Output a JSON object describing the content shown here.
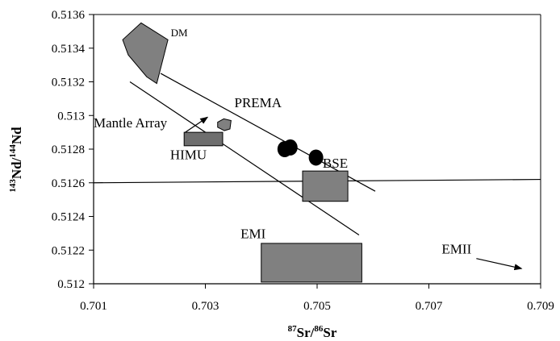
{
  "chart_data": {
    "type": "scatter",
    "title": "",
    "xlabel": {
      "sup1": "87",
      "main1": "Sr/",
      "sup2": "86",
      "main2": "Sr"
    },
    "ylabel": {
      "sup1": "143",
      "main1": "Nd/",
      "sup2": "144",
      "main2": "Nd"
    },
    "xlim": [
      0.701,
      0.709
    ],
    "ylim": [
      0.512,
      0.5136
    ],
    "xticks": [
      {
        "value": 0.701,
        "label": "0.701"
      },
      {
        "value": 0.703,
        "label": "0.703"
      },
      {
        "value": 0.705,
        "label": "0.705"
      },
      {
        "value": 0.707,
        "label": "0.707"
      },
      {
        "value": 0.709,
        "label": "0.709"
      }
    ],
    "yticks": [
      {
        "value": 0.512,
        "label": "0.512"
      },
      {
        "value": 0.5122,
        "label": "0.5122"
      },
      {
        "value": 0.5124,
        "label": "0.5124"
      },
      {
        "value": 0.5126,
        "label": "0.5126"
      },
      {
        "value": 0.5128,
        "label": "0.5128"
      },
      {
        "value": 0.513,
        "label": "0.513"
      },
      {
        "value": 0.5132,
        "label": "0.5132"
      },
      {
        "value": 0.5134,
        "label": "0.5134"
      },
      {
        "value": 0.5136,
        "label": "0.5136"
      }
    ],
    "grid": false,
    "fields": [
      {
        "name": "DM",
        "shape": "hexagon",
        "color": "#808080",
        "polygon": [
          [
            0.70152,
            0.51345
          ],
          [
            0.70185,
            0.51355
          ],
          [
            0.70233,
            0.51345
          ],
          [
            0.70213,
            0.51319
          ],
          [
            0.70195,
            0.51323
          ],
          [
            0.70162,
            0.51336
          ]
        ]
      },
      {
        "name": "PREMA",
        "shape": "small-hexagon",
        "color": "#808080",
        "polygon": [
          [
            0.70322,
            0.51296
          ],
          [
            0.70333,
            0.51298
          ],
          [
            0.70346,
            0.51297
          ],
          [
            0.70344,
            0.51292
          ],
          [
            0.70334,
            0.51291
          ],
          [
            0.70322,
            0.51293
          ]
        ]
      },
      {
        "name": "HIMU",
        "shape": "rectangle",
        "color": "#6e6e6e",
        "xrange": [
          0.70262,
          0.70331
        ],
        "yrange": [
          0.51282,
          0.5129
        ]
      },
      {
        "name": "BSE",
        "shape": "rectangle",
        "color": "#808080",
        "xrange": [
          0.70474,
          0.70555
        ],
        "yrange": [
          0.51249,
          0.51267
        ]
      },
      {
        "name": "EMI",
        "shape": "rectangle",
        "color": "#808080",
        "xrange": [
          0.704,
          0.7058
        ],
        "yrange": [
          0.51201,
          0.51224
        ]
      },
      {
        "name": "EMII",
        "shape": "off-chart-arrow",
        "color": "#000000",
        "arrow_from": [
          0.70785,
          0.51215
        ],
        "arrow_to": [
          0.70866,
          0.51209
        ]
      }
    ],
    "samples": [
      {
        "x": 0.70442,
        "y": 0.5128
      },
      {
        "x": 0.70452,
        "y": 0.51281
      },
      {
        "x": 0.70498,
        "y": 0.51275
      }
    ],
    "lines": [
      {
        "name": "Mantle Array upper",
        "from": [
          0.7022,
          0.51325
        ],
        "to": [
          0.70604,
          0.51255
        ]
      },
      {
        "name": "Mantle Array lower",
        "from": [
          0.70165,
          0.5132
        ],
        "to": [
          0.70575,
          0.51229
        ]
      },
      {
        "name": "reference",
        "from": [
          0.701,
          0.5126
        ],
        "to": [
          0.709,
          0.51262
        ]
      }
    ],
    "annotations": [
      {
        "text": "DM",
        "x": 0.70238,
        "y": 0.51347,
        "size": 13
      },
      {
        "text": "PREMA",
        "x": 0.70352,
        "y": 0.51305,
        "size": 17
      },
      {
        "text": "Mantle Array",
        "x": 0.701,
        "y": 0.51293,
        "size": 17
      },
      {
        "text": "HIMU",
        "x": 0.70237,
        "y": 0.51274,
        "size": 17
      },
      {
        "text": "BSE",
        "x": 0.7051,
        "y": 0.51269,
        "size": 17
      },
      {
        "text": "EMI",
        "x": 0.70363,
        "y": 0.51227,
        "size": 17
      },
      {
        "text": "EMII",
        "x": 0.70723,
        "y": 0.51218,
        "size": 17
      }
    ],
    "mantle_arrow": {
      "from": [
        0.70264,
        0.5129
      ],
      "to": [
        0.70304,
        0.51299
      ]
    }
  }
}
